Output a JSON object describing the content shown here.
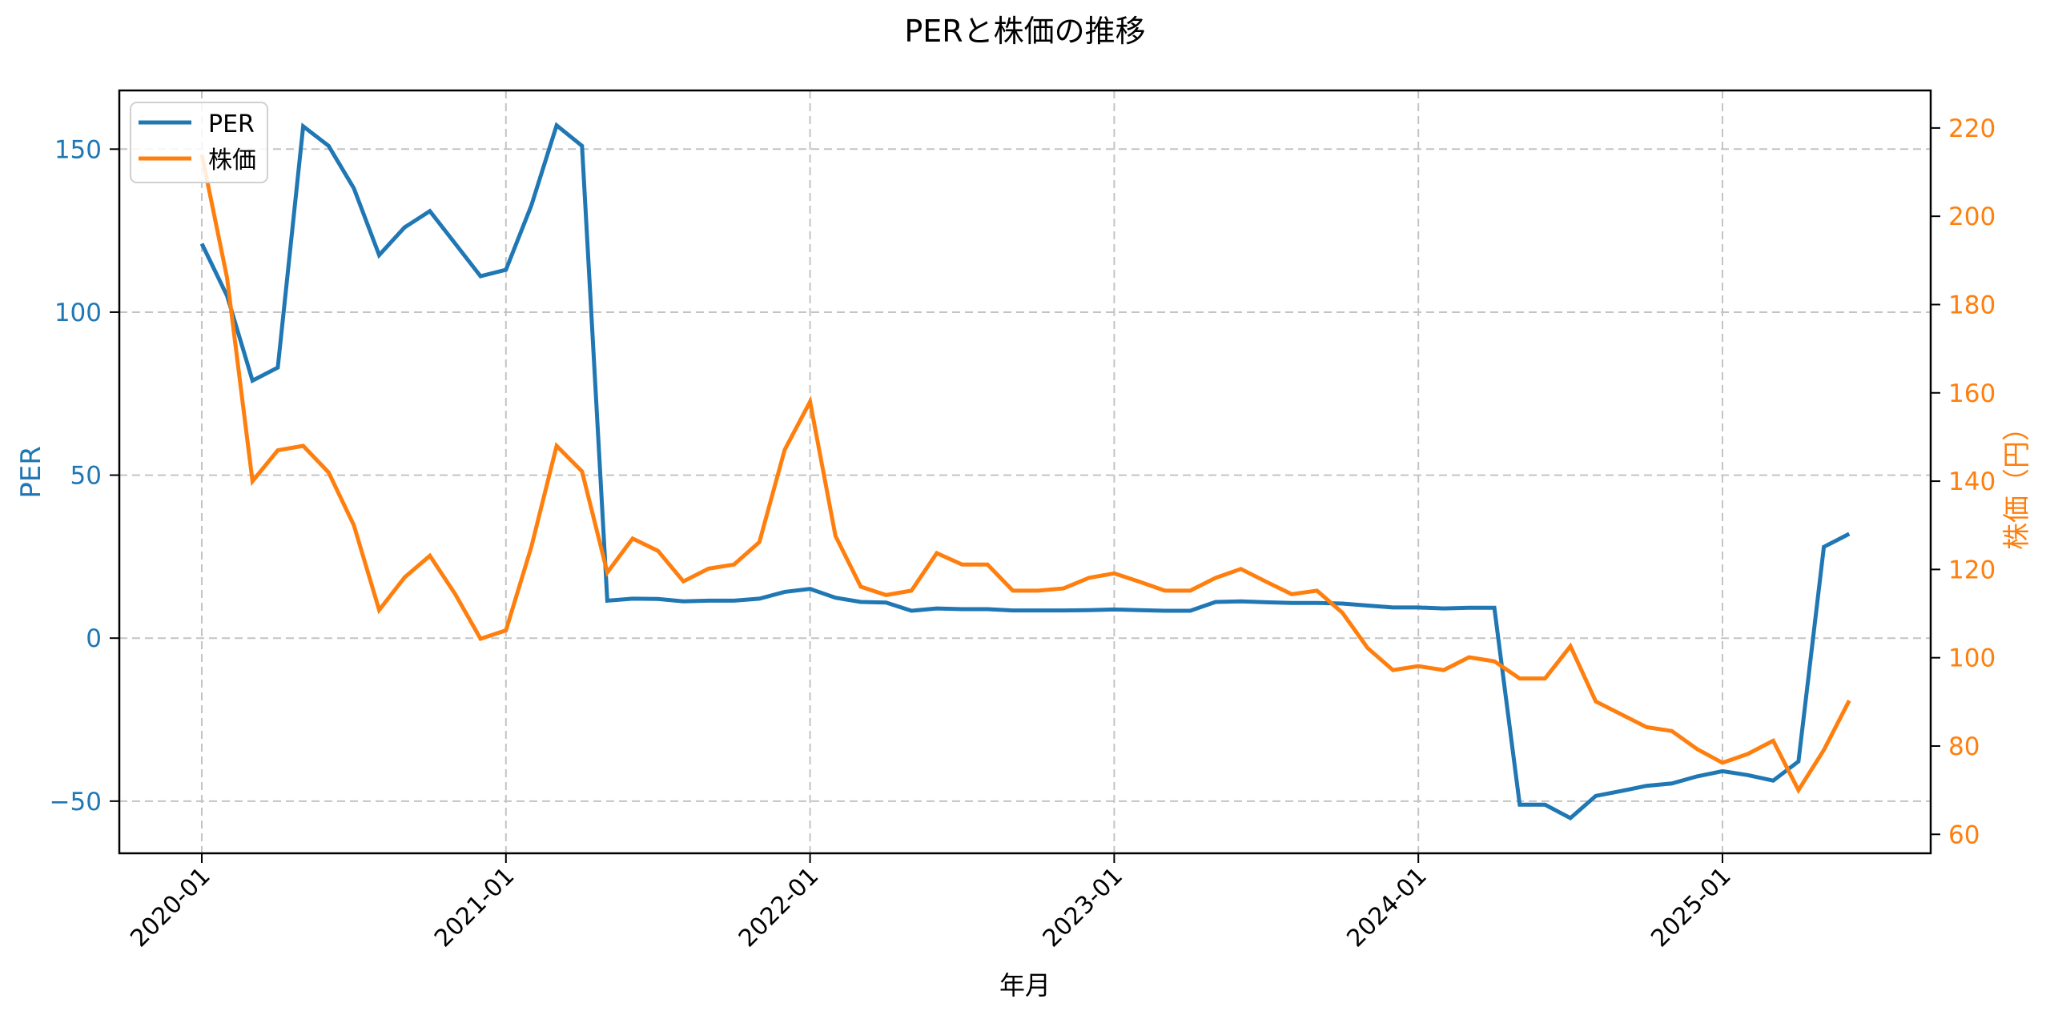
{
  "chart_data": {
    "type": "line",
    "title": "PERと株価の推移",
    "xlabel": "年月",
    "ylabel": "PER",
    "ylabel_right": "株価（円）",
    "x": [
      "2020-01",
      "2020-02",
      "2020-03",
      "2020-04",
      "2020-05",
      "2020-06",
      "2020-07",
      "2020-08",
      "2020-09",
      "2020-10",
      "2020-11",
      "2020-12",
      "2021-01",
      "2021-02",
      "2021-03",
      "2021-04",
      "2021-05",
      "2021-06",
      "2021-07",
      "2021-08",
      "2021-09",
      "2021-10",
      "2021-11",
      "2021-12",
      "2022-01",
      "2022-02",
      "2022-03",
      "2022-04",
      "2022-05",
      "2022-06",
      "2022-07",
      "2022-08",
      "2022-09",
      "2022-10",
      "2022-11",
      "2022-12",
      "2023-01",
      "2023-02",
      "2023-03",
      "2023-04",
      "2023-05",
      "2023-06",
      "2023-07",
      "2023-08",
      "2023-09",
      "2023-10",
      "2023-11",
      "2023-12",
      "2024-01",
      "2024-02",
      "2024-03",
      "2024-04",
      "2024-05",
      "2024-06",
      "2024-07",
      "2024-08",
      "2024-09",
      "2024-10",
      "2024-11",
      "2024-12",
      "2025-01",
      "2025-02",
      "2025-03",
      "2025-04",
      "2025-05",
      "2025-06"
    ],
    "series": [
      {
        "name": "PER",
        "axis": "left",
        "color": "#1f77b4",
        "values": [
          121,
          105,
          79,
          83,
          157,
          151,
          138,
          117.5,
          126,
          131,
          121,
          111,
          113,
          132.7,
          157.3,
          151,
          11.5,
          12.1,
          12,
          11.3,
          11.5,
          11.5,
          12.1,
          14.2,
          15.1,
          12.4,
          11.1,
          10.9,
          8.4,
          9.1,
          8.9,
          8.9,
          8.5,
          8.5,
          8.5,
          8.6,
          8.8,
          8.6,
          8.4,
          8.4,
          11.1,
          11.3,
          11.0,
          10.8,
          10.8,
          10.6,
          10.0,
          9.4,
          9.4,
          9.1,
          9.3,
          9.3,
          -51.1,
          -51.1,
          -55.2,
          -48.4,
          -46.9,
          -45.3,
          -44.6,
          -42.4,
          -40.8,
          -42.0,
          -43.7,
          -37.8,
          28,
          32
        ]
      },
      {
        "name": "株価",
        "axis": "right",
        "color": "#ff7f0e",
        "values": [
          214,
          186,
          140,
          147,
          148,
          142,
          130,
          110.8,
          118.2,
          123.1,
          114.4,
          104.3,
          106.2,
          125.1,
          148,
          142.2,
          119.3,
          127,
          124.2,
          117.3,
          120.2,
          121.1,
          126.2,
          147.1,
          158,
          127.6,
          116.1,
          114.2,
          115.2,
          123.7,
          121.1,
          121.1,
          115.2,
          115.2,
          115.7,
          118.1,
          119.1,
          117.2,
          115.2,
          115.2,
          118.1,
          120.1,
          117.2,
          114.4,
          115.2,
          110.2,
          102.2,
          97.2,
          98.1,
          97.2,
          100.1,
          99.2,
          95.3,
          95.3,
          102.6,
          90.1,
          87.2,
          84.3,
          83.4,
          79.3,
          76.2,
          78.2,
          81.2,
          70,
          79.1,
          90.3
        ]
      }
    ],
    "xticks": [
      "2020-01",
      "2021-01",
      "2022-01",
      "2023-01",
      "2024-01",
      "2025-01"
    ],
    "yticks_left": [
      -50,
      0,
      50,
      100,
      150
    ],
    "yticks_right": [
      60,
      80,
      100,
      120,
      140,
      160,
      180,
      200,
      220
    ],
    "ylim_left": [
      -66,
      168
    ],
    "ylim_right": [
      55.7,
      228.5
    ],
    "grid": true,
    "legend_position": "upper left",
    "legend": [
      "PER",
      "株価"
    ],
    "left_axis_color": "#1f77b4",
    "right_axis_color": "#ff7f0e"
  }
}
